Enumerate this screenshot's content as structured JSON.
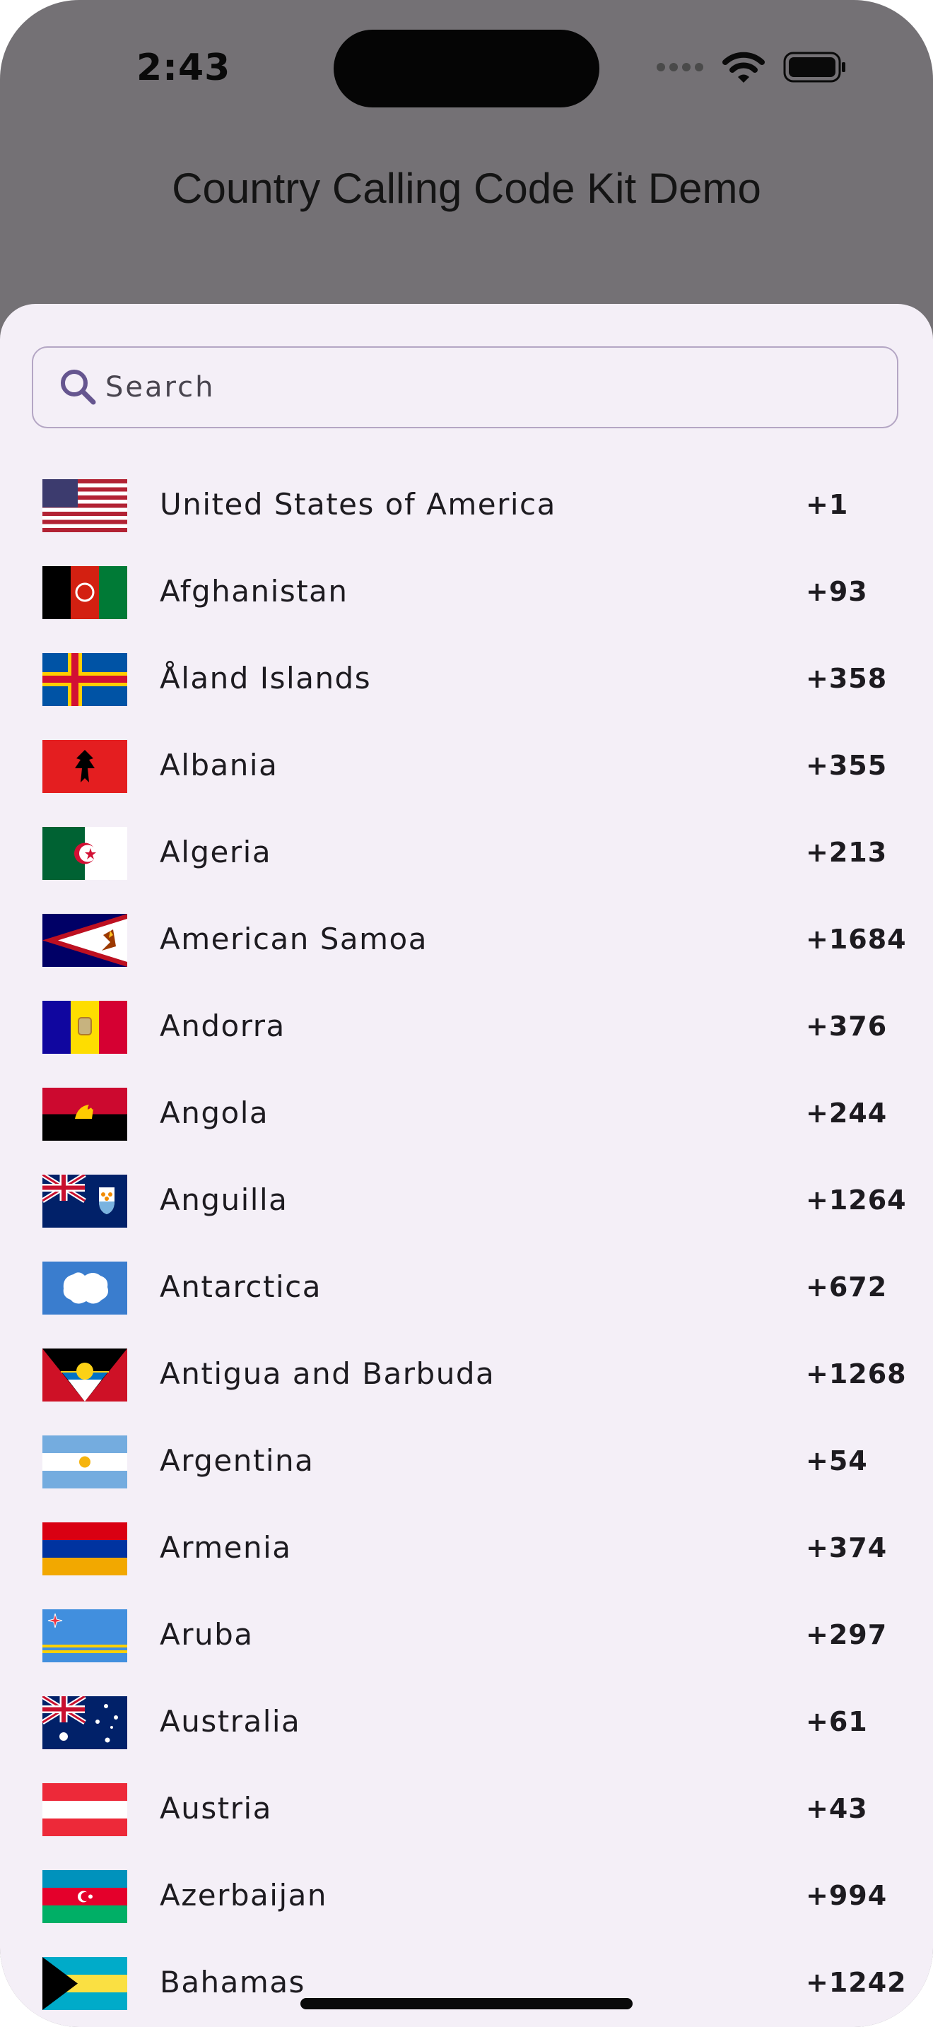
{
  "status_bar": {
    "time": "2:43"
  },
  "app": {
    "title": "Country Calling Code Kit Demo"
  },
  "search": {
    "placeholder": "Search",
    "value": ""
  },
  "countries": [
    {
      "name": "United States of America",
      "code": "+1",
      "flag": "us-flag"
    },
    {
      "name": "Afghanistan",
      "code": "+93",
      "flag": "af-flag"
    },
    {
      "name": "Åland Islands",
      "code": "+358",
      "flag": "ax-flag"
    },
    {
      "name": "Albania",
      "code": "+355",
      "flag": "al-flag"
    },
    {
      "name": "Algeria",
      "code": "+213",
      "flag": "dz-flag"
    },
    {
      "name": "American Samoa",
      "code": "+1684",
      "flag": "as-flag"
    },
    {
      "name": "Andorra",
      "code": "+376",
      "flag": "ad-flag"
    },
    {
      "name": "Angola",
      "code": "+244",
      "flag": "ao-flag"
    },
    {
      "name": "Anguilla",
      "code": "+1264",
      "flag": "ai-flag"
    },
    {
      "name": "Antarctica",
      "code": "+672",
      "flag": "aq-flag"
    },
    {
      "name": "Antigua and Barbuda",
      "code": "+1268",
      "flag": "ag-flag"
    },
    {
      "name": "Argentina",
      "code": "+54",
      "flag": "ar-flag"
    },
    {
      "name": "Armenia",
      "code": "+374",
      "flag": "am-flag"
    },
    {
      "name": "Aruba",
      "code": "+297",
      "flag": "aw-flag"
    },
    {
      "name": "Australia",
      "code": "+61",
      "flag": "au-flag"
    },
    {
      "name": "Austria",
      "code": "+43",
      "flag": "at-flag"
    },
    {
      "name": "Azerbaijan",
      "code": "+994",
      "flag": "az-flag"
    },
    {
      "name": "Bahamas",
      "code": "+1242",
      "flag": "bs-flag"
    }
  ],
  "colors": {
    "app_bar": "#747175",
    "sheet": "#f4eff7",
    "search_border": "#b4a6c4",
    "search_icon": "#65558f",
    "text": "#1d1b20"
  }
}
